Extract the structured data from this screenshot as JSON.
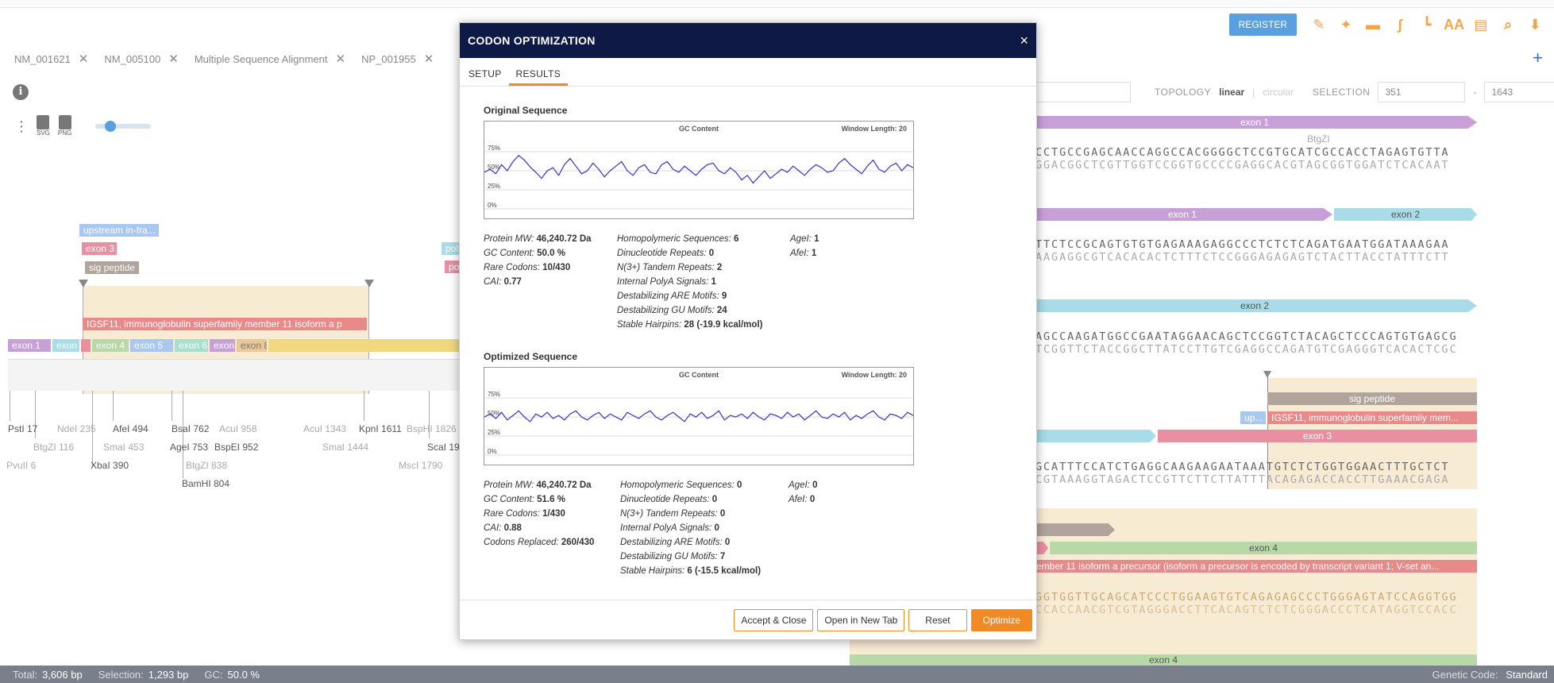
{
  "toolbar": {
    "register_label": "REGISTER",
    "icons": [
      "pen-icon",
      "magic-wand-icon",
      "tag-icon",
      "primer-icon",
      "junction-icon",
      "text-size-icon",
      "ruler-icon",
      "search-icon",
      "export-icon"
    ],
    "text_size_glyph": "AA"
  },
  "seq_tabs": [
    {
      "label": "NM_001621"
    },
    {
      "label": "NM_005100"
    },
    {
      "label": "Multiple Sequence Alignment"
    },
    {
      "label": "NP_001955"
    }
  ],
  "add_tab_glyph": "+",
  "map_controls": {
    "svg_label": "SVG",
    "png_label": "PNG"
  },
  "topology": {
    "label": "TOPOLOGY",
    "linear": "linear",
    "circular": "circular",
    "selection_label": "SELECTION",
    "sel_start": "351",
    "sel_end": "1643",
    "dash": "-"
  },
  "left_map": {
    "features": {
      "upstream": "upstream in-fra...",
      "exon3": "exon 3",
      "sig_peptide": "sig peptide",
      "poly": "poly",
      "po": "po",
      "igsf11": "IGSF11, immunoglobulin superfamily member 11 isoform a p",
      "exon1": "exon 1",
      "exon2": "exon",
      "exon4": "exon 4",
      "exon5": "exon 5",
      "exon6": "exon 6",
      "exon7": "exon",
      "exon8": "exon 8"
    },
    "enzymes": {
      "pstl": "PstI 17",
      "btgzi": "BtgZI 116",
      "pvuii": "PvuII 6",
      "ndei": "NdeI 235",
      "smal453": "SmaI 453",
      "xbai": "XbaI 390",
      "afei": "AfeI 494",
      "bsai": "BsaI 762",
      "agei": "AgeI 753",
      "btgzi838": "BtgZI 838",
      "bamhi": "BamHI 804",
      "acui958": "AcuI 958",
      "bspei": "BspEI 952",
      "acui1343": "AcuI 1343",
      "smai1444": "SmaI 1444",
      "kpni": "KpnI 1611",
      "bsphi": "BspHI 1826",
      "scai": "ScaI 19",
      "mscl": "MscI 1790"
    }
  },
  "right_seq": {
    "exon1_a": "exon 1",
    "btgzi": "BtgZI",
    "row1_top": "CCTGCCGAGCAACCAGGCCACGGGGCTCCGTGCATCGCCACCTAGAGTGTTA",
    "row1_bottom": "GGACGGCTCGTTGGTCCGGTGCCCCGAGGCACGTAGCGGTGGATCTCACAAT",
    "exon1_b": "exon 1",
    "exon2_a": "exon 2",
    "row2_top": "TTCTCCGCAGTGTGTGAGAAAGAGGCCCTCTCTCAGATGAATGGATAAAGAA",
    "row2_bottom": "AAGAGGCGTCACACACTCTTTCTCCGGGAGAGAGTCTACTTACCTATTTCTT",
    "exon2_b": "exon 2",
    "row3_top": "AGCCAAGATGGCCGAATAGGAACAGCTCCGGTCTACAGCTCCCAGTGTGAGCG",
    "row3_bottom": "TCGGTTCTACCGGCTTATCCTTGTCGAGGCCAGATGTCGAGGGTCACACTCGC",
    "sig_peptide": "sig peptide",
    "up": "up...",
    "igsf11": "IGSF11, immunoglobulin superfamily mem...",
    "exon3": "exon 3",
    "row4_top": "GCATTTCCATCTGAGGCAAGAAGAATAAATGTCTCTGGTGGAACTTTGCTCT",
    "row4_bottom": "CGTAAAGGTAGACTCCGTTCTTCTTATTTACAGAGACCACCTTGAAACGAGA",
    "exon4": "exon 4",
    "igsf11_long": "ember 11 isoform a precursor (isoform a precursor is encoded by transcript variant 1; V-set an...",
    "row5_top": "GGTGGTTGCAGCATCCCTGGAAGTGTCAGAGAGCCCTGGGAGTATCCAGGTGG",
    "row5_bottom": "CCACCAACGTCGTAGGGACCTTCACAGTCTCTCGGGACCCTCATAGGTCCACC",
    "exon4_b": "exon 4"
  },
  "modal": {
    "title": "CODON OPTIMIZATION",
    "close_glyph": "×",
    "tabs": [
      {
        "label": "SETUP"
      },
      {
        "label": "RESULTS"
      }
    ],
    "active_tab": "RESULTS",
    "original": {
      "title": "Original Sequence",
      "chart_title": "GC Content",
      "window_length": "Window Length: 20",
      "stats_col1": [
        {
          "k": "Protein MW:",
          "v": "46,240.72 Da"
        },
        {
          "k": "GC Content:",
          "v": "50.0 %"
        },
        {
          "k": "Rare Codons:",
          "v": "10/430"
        },
        {
          "k": "CAI:",
          "v": "0.77"
        }
      ],
      "stats_col2": [
        {
          "k": "Homopolymeric Sequences:",
          "v": "6"
        },
        {
          "k": "Dinucleotide Repeats:",
          "v": "0"
        },
        {
          "k": "N(3+) Tandem Repeats:",
          "v": "2"
        },
        {
          "k": "Internal PolyA Signals:",
          "v": "1"
        },
        {
          "k": "Destabilizing ARE Motifs:",
          "v": "9"
        },
        {
          "k": "Destabilizing GU Motifs:",
          "v": "24"
        },
        {
          "k": "Stable Hairpins:",
          "v": "28 (-19.9 kcal/mol)"
        }
      ],
      "stats_col3": [
        {
          "k": "AgeI:",
          "v": "1"
        },
        {
          "k": "AfeI:",
          "v": "1"
        }
      ]
    },
    "optimized": {
      "title": "Optimized Sequence",
      "chart_title": "GC Content",
      "window_length": "Window Length: 20",
      "stats_col1": [
        {
          "k": "Protein MW:",
          "v": "46,240.72 Da"
        },
        {
          "k": "GC Content:",
          "v": "51.6 %"
        },
        {
          "k": "Rare Codons:",
          "v": "1/430"
        },
        {
          "k": "CAI:",
          "v": "0.88"
        },
        {
          "k": "Codons Replaced:",
          "v": "260/430"
        }
      ],
      "stats_col2": [
        {
          "k": "Homopolymeric Sequences:",
          "v": "0"
        },
        {
          "k": "Dinucleotide Repeats:",
          "v": "0"
        },
        {
          "k": "N(3+) Tandem Repeats:",
          "v": "0"
        },
        {
          "k": "Internal PolyA Signals:",
          "v": "0"
        },
        {
          "k": "Destabilizing ARE Motifs:",
          "v": "0"
        },
        {
          "k": "Destabilizing GU Motifs:",
          "v": "7"
        },
        {
          "k": "Stable Hairpins:",
          "v": "6 (-15.5 kcal/mol)"
        }
      ],
      "stats_col3": [
        {
          "k": "AgeI:",
          "v": "0"
        },
        {
          "k": "AfeI:",
          "v": "0"
        }
      ]
    },
    "footer": {
      "accept_close": "Accept & Close",
      "open_new_tab": "Open in New Tab",
      "reset": "Reset",
      "optimize": "Optimize"
    }
  },
  "chart_data": [
    {
      "type": "line",
      "title": "GC Content",
      "subtitle": "Window Length: 20",
      "y_ticks": [
        "75%",
        "50%",
        "25%",
        "0%"
      ],
      "ylim": [
        0,
        100
      ],
      "series": [
        {
          "values": [
            48,
            52,
            46,
            58,
            50,
            62,
            70,
            64,
            55,
            48,
            40,
            50,
            54,
            44,
            58,
            66,
            56,
            46,
            50,
            60,
            52,
            42,
            50,
            56,
            62,
            50,
            44,
            54,
            58,
            48,
            46,
            58,
            62,
            52,
            48,
            56,
            50,
            44,
            52,
            58,
            60,
            50,
            46,
            54,
            48,
            38,
            44,
            34,
            42,
            50,
            40,
            46,
            52,
            48,
            56,
            50,
            44,
            52,
            58,
            54,
            48,
            50,
            60,
            66,
            58,
            52,
            46,
            56,
            64,
            52,
            48,
            56,
            60,
            50,
            58,
            54
          ]
        }
      ]
    },
    {
      "type": "line",
      "title": "GC Content",
      "subtitle": "Window Length: 20",
      "y_ticks": [
        "75%",
        "50%",
        "25%",
        "0%"
      ],
      "ylim": [
        0,
        100
      ],
      "series": [
        {
          "values": [
            50,
            54,
            48,
            56,
            46,
            52,
            58,
            50,
            44,
            54,
            50,
            56,
            48,
            52,
            46,
            54,
            58,
            50,
            46,
            52,
            56,
            48,
            54,
            50,
            46,
            56,
            52,
            48,
            54,
            58,
            50,
            46,
            52,
            56,
            50,
            44,
            54,
            50,
            56,
            48,
            52,
            58,
            46,
            52,
            50,
            54,
            48,
            56,
            50,
            46,
            54,
            52,
            48,
            56,
            50,
            54,
            46,
            52,
            58,
            50,
            48,
            54,
            50,
            56,
            46,
            52,
            48,
            54,
            58,
            50,
            46,
            54,
            52,
            48,
            56,
            52
          ]
        }
      ]
    }
  ],
  "status": {
    "total_label": "Total:",
    "total": "3,606 bp",
    "selection_label": "Selection:",
    "selection": "1,293 bp",
    "gc_label": "GC:",
    "gc": "50.0 %",
    "genetic_code_label": "Genetic Code:",
    "genetic_code": "Standard"
  }
}
